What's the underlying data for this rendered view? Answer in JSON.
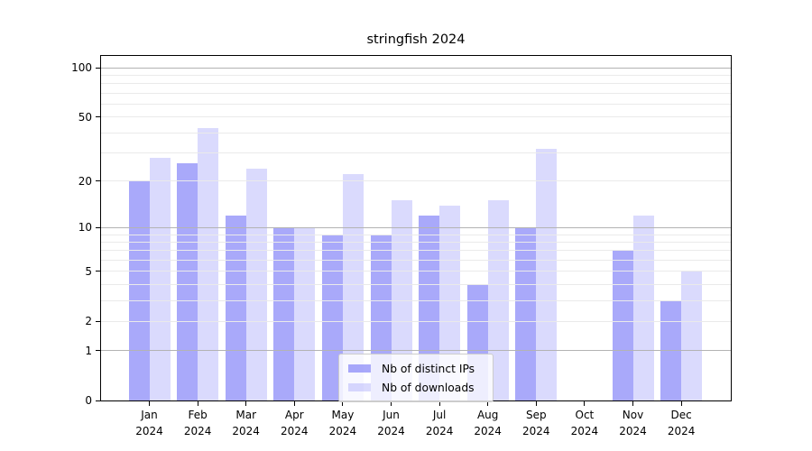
{
  "chart_data": {
    "type": "bar",
    "title": "stringfish 2024",
    "categories": [
      "Jan",
      "Feb",
      "Mar",
      "Apr",
      "May",
      "Jun",
      "Jul",
      "Aug",
      "Sep",
      "Oct",
      "Nov",
      "Dec"
    ],
    "category_year": "2024",
    "series": [
      {
        "name": "Nb of distinct IPs",
        "values": [
          20,
          26,
          12,
          10,
          9,
          9,
          12,
          4,
          10,
          0,
          7,
          3
        ],
        "color": "rgba(136,136,248,0.72)"
      },
      {
        "name": "Nb of downloads",
        "values": [
          28,
          43,
          24,
          10,
          22,
          15,
          14,
          15,
          32,
          0,
          12,
          5
        ],
        "color": "rgba(136,136,248,0.31)"
      }
    ],
    "yscale": "log1p",
    "ylim": [
      0,
      118
    ],
    "yticks": [
      0,
      1,
      2,
      5,
      10,
      20,
      50,
      100
    ],
    "major_gridlines": [
      1,
      10,
      100
    ],
    "minor_gridlines": [
      2,
      3,
      4,
      5,
      6,
      7,
      8,
      9,
      20,
      30,
      40,
      50,
      60,
      70,
      80,
      90
    ],
    "grid": true,
    "legend_position": "lower center",
    "xlabel": "",
    "ylabel": "",
    "colors": {
      "bar_base": "#8888f8",
      "major_grid": "#b3b3b3",
      "minor_grid": "#eaeaea",
      "axis": "#000000",
      "legend_border": "#cccccc"
    }
  }
}
